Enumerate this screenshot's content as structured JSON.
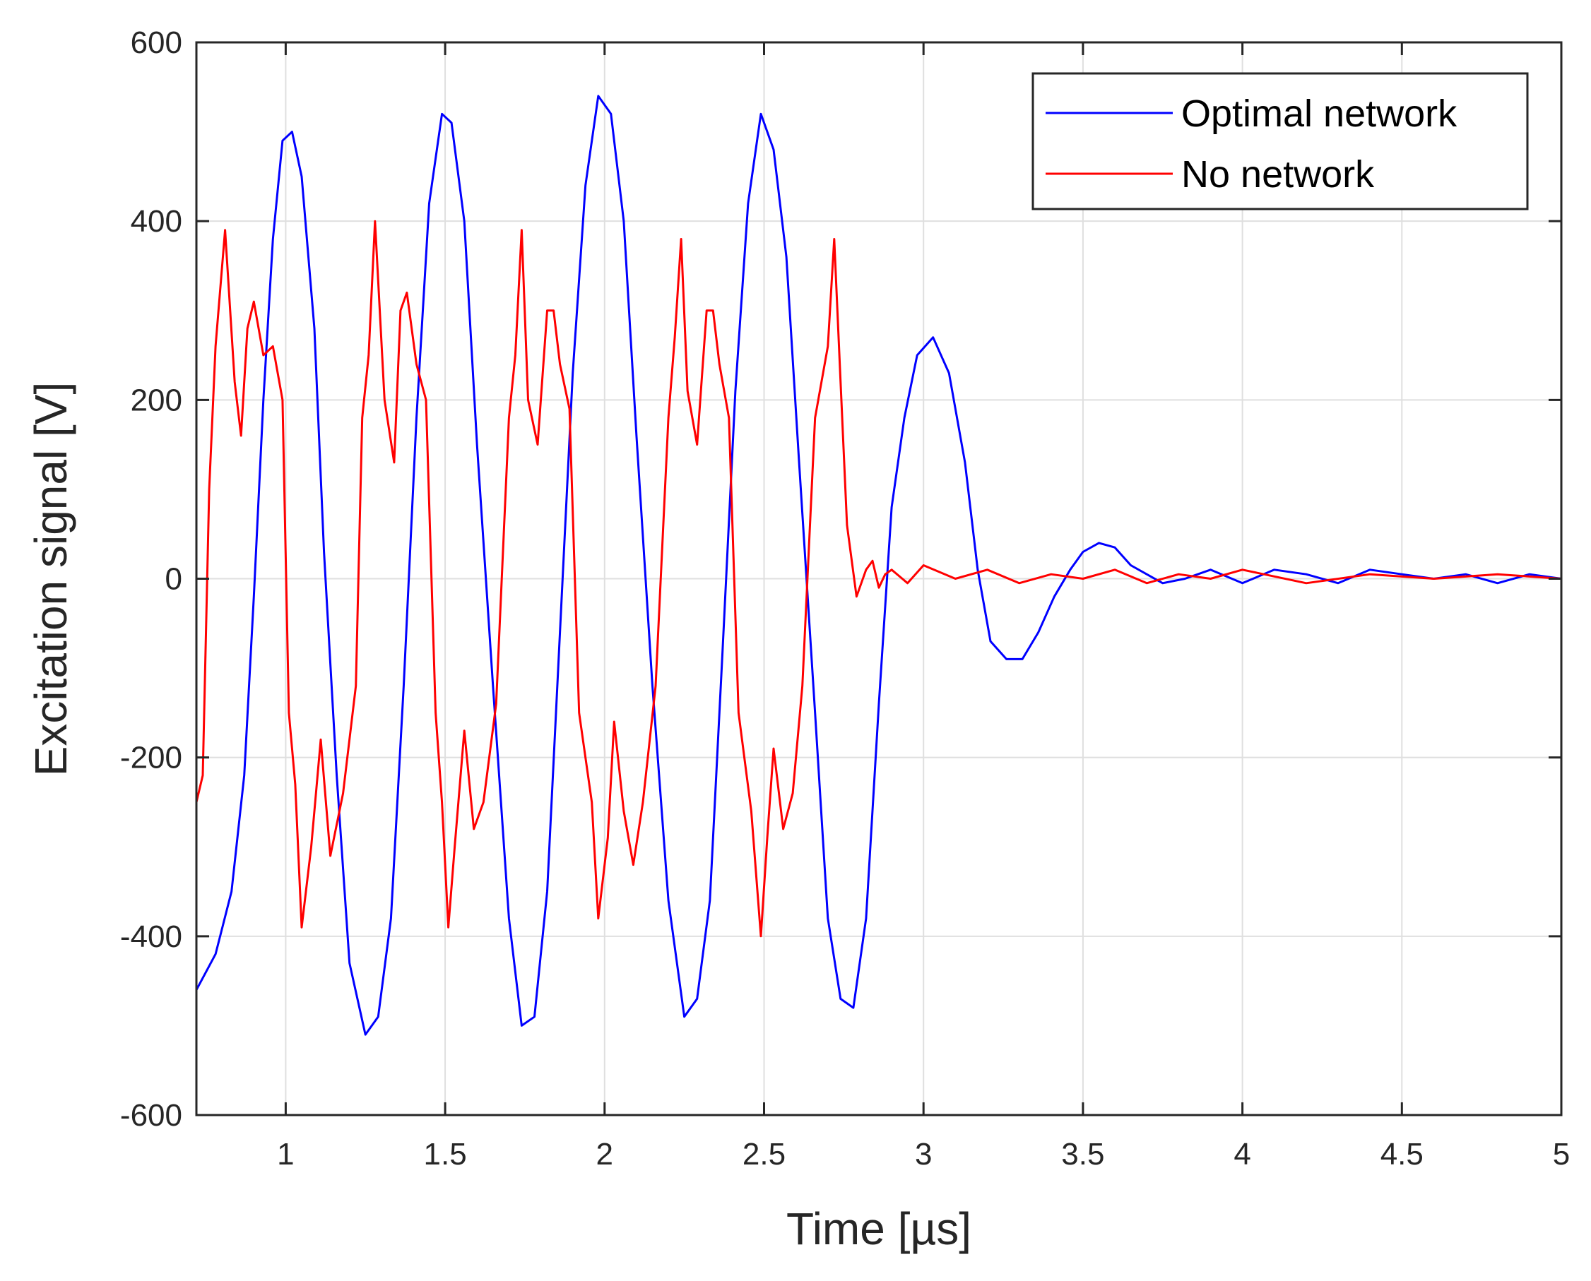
{
  "chart_data": {
    "type": "line",
    "title": "",
    "xlabel": "Time [µs]",
    "ylabel": "Excitation signal [V]",
    "xlim": [
      0.72,
      5
    ],
    "ylim": [
      -600,
      600
    ],
    "grid": true,
    "legend_position": "top-right",
    "x_ticks": [
      1,
      1.5,
      2,
      2.5,
      3,
      3.5,
      4,
      4.5,
      5
    ],
    "x_tick_labels": [
      "1",
      "1.5",
      "2",
      "2.5",
      "3",
      "3.5",
      "4",
      "4.5",
      "5"
    ],
    "y_ticks": [
      -600,
      -400,
      -200,
      0,
      200,
      400,
      600
    ],
    "y_tick_labels": [
      "-600",
      "-400",
      "-200",
      "0",
      "200",
      "400",
      "600"
    ],
    "series": [
      {
        "name": "Optimal network",
        "color": "#0000ff",
        "x": [
          0.72,
          0.78,
          0.83,
          0.87,
          0.9,
          0.93,
          0.96,
          0.99,
          1.02,
          1.05,
          1.09,
          1.12,
          1.16,
          1.2,
          1.25,
          1.29,
          1.33,
          1.37,
          1.41,
          1.45,
          1.49,
          1.52,
          1.56,
          1.6,
          1.65,
          1.7,
          1.74,
          1.78,
          1.82,
          1.86,
          1.9,
          1.94,
          1.98,
          2.02,
          2.06,
          2.1,
          2.15,
          2.2,
          2.25,
          2.29,
          2.33,
          2.37,
          2.41,
          2.45,
          2.49,
          2.53,
          2.57,
          2.61,
          2.66,
          2.7,
          2.74,
          2.78,
          2.82,
          2.86,
          2.9,
          2.94,
          2.98,
          3.03,
          3.08,
          3.13,
          3.17,
          3.21,
          3.26,
          3.31,
          3.36,
          3.41,
          3.46,
          3.5,
          3.55,
          3.6,
          3.65,
          3.7,
          3.75,
          3.82,
          3.9,
          4.0,
          4.1,
          4.2,
          4.3,
          4.4,
          4.5,
          4.6,
          4.7,
          4.8,
          4.9,
          5.0
        ],
        "y": [
          -460,
          -420,
          -350,
          -220,
          -20,
          200,
          380,
          490,
          500,
          450,
          280,
          30,
          -220,
          -430,
          -510,
          -490,
          -380,
          -120,
          180,
          420,
          520,
          510,
          400,
          150,
          -120,
          -380,
          -500,
          -490,
          -350,
          -60,
          230,
          440,
          540,
          520,
          400,
          160,
          -120,
          -360,
          -490,
          -470,
          -360,
          -80,
          210,
          420,
          520,
          480,
          360,
          130,
          -150,
          -380,
          -470,
          -480,
          -380,
          -140,
          80,
          180,
          250,
          270,
          230,
          130,
          10,
          -70,
          -90,
          -90,
          -60,
          -20,
          10,
          30,
          40,
          35,
          15,
          5,
          -5,
          0,
          10,
          -5,
          10,
          5,
          -5,
          10,
          5,
          0,
          5,
          -5,
          5,
          0
        ]
      },
      {
        "name": "No network",
        "color": "#ff0000",
        "x": [
          0.72,
          0.74,
          0.76,
          0.78,
          0.81,
          0.84,
          0.86,
          0.88,
          0.9,
          0.93,
          0.96,
          0.99,
          1.01,
          1.03,
          1.05,
          1.08,
          1.11,
          1.14,
          1.18,
          1.22,
          1.24,
          1.26,
          1.28,
          1.31,
          1.34,
          1.36,
          1.38,
          1.41,
          1.44,
          1.47,
          1.49,
          1.51,
          1.53,
          1.56,
          1.59,
          1.62,
          1.66,
          1.7,
          1.72,
          1.74,
          1.76,
          1.79,
          1.82,
          1.84,
          1.86,
          1.89,
          1.92,
          1.96,
          1.98,
          2.01,
          2.03,
          2.06,
          2.09,
          2.12,
          2.16,
          2.2,
          2.22,
          2.24,
          2.26,
          2.29,
          2.32,
          2.34,
          2.36,
          2.39,
          2.42,
          2.46,
          2.49,
          2.51,
          2.53,
          2.56,
          2.59,
          2.62,
          2.66,
          2.7,
          2.72,
          2.74,
          2.76,
          2.79,
          2.82,
          2.84,
          2.86,
          2.88,
          2.9,
          2.95,
          3.0,
          3.1,
          3.2,
          3.3,
          3.4,
          3.5,
          3.6,
          3.7,
          3.8,
          3.9,
          4.0,
          4.2,
          4.4,
          4.6,
          4.8,
          5.0
        ],
        "y": [
          -250,
          -220,
          100,
          260,
          390,
          220,
          160,
          280,
          310,
          250,
          260,
          200,
          -150,
          -230,
          -390,
          -300,
          -180,
          -310,
          -240,
          -120,
          180,
          250,
          400,
          200,
          130,
          300,
          320,
          240,
          200,
          -150,
          -250,
          -390,
          -300,
          -170,
          -280,
          -250,
          -140,
          180,
          250,
          390,
          200,
          150,
          300,
          300,
          240,
          190,
          -150,
          -250,
          -380,
          -290,
          -160,
          -260,
          -320,
          -250,
          -120,
          180,
          270,
          380,
          210,
          150,
          300,
          300,
          240,
          180,
          -150,
          -260,
          -400,
          -290,
          -190,
          -280,
          -240,
          -120,
          180,
          260,
          380,
          220,
          60,
          -20,
          10,
          20,
          -10,
          5,
          10,
          -5,
          15,
          0,
          10,
          -5,
          5,
          0,
          10,
          -5,
          5,
          0,
          10,
          -5,
          5,
          0,
          5,
          0
        ]
      }
    ]
  }
}
